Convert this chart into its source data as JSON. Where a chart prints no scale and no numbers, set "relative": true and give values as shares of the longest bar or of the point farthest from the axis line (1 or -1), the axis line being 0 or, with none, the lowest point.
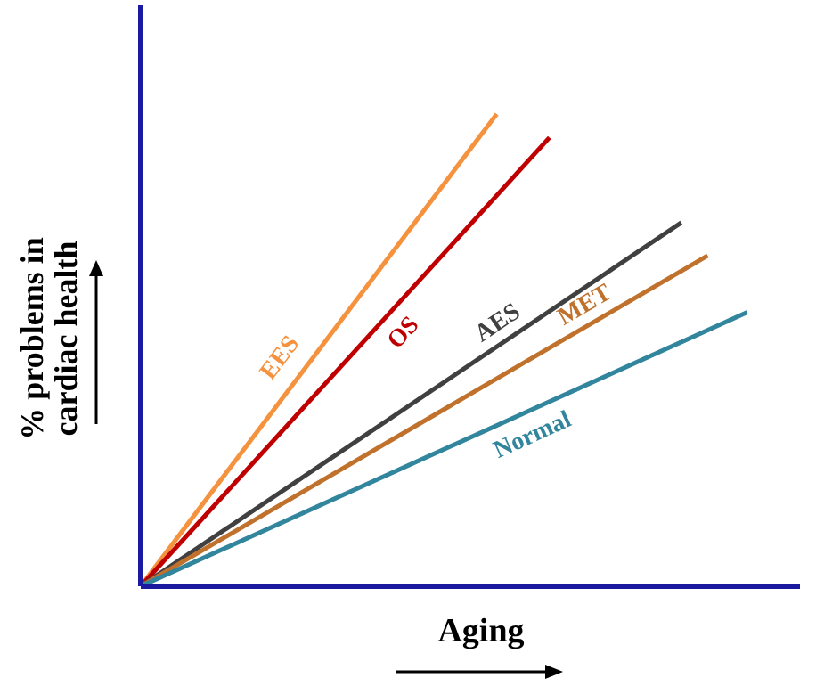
{
  "chart_data": {
    "type": "line",
    "relative": true,
    "xlabel": "Aging",
    "ylabel": "% problems in\ncardiac health",
    "grid": false,
    "legend": false,
    "marker": "none",
    "line_style": "solid",
    "categories": [
      null,
      null,
      null,
      null,
      null,
      null,
      null,
      null,
      null,
      null,
      null,
      null,
      null,
      null,
      null,
      null,
      null,
      null,
      null,
      null,
      null,
      null,
      null,
      null,
      null,
      null,
      null,
      null,
      null,
      null,
      null,
      null,
      null,
      null,
      null,
      null,
      null,
      null,
      null,
      null,
      null,
      null,
      null,
      null,
      null,
      null,
      null,
      null,
      null,
      null,
      null
    ],
    "series": [
      {
        "name": "EES",
        "color": "#f5923e",
        "values": [
          0,
          null,
          null,
          null,
          null,
          null,
          null,
          null,
          null,
          null,
          null,
          null,
          null,
          null,
          null,
          null,
          null,
          null,
          null,
          null,
          null,
          null,
          null,
          null,
          null,
          null,
          null,
          1,
          null,
          null,
          null,
          null,
          null,
          null,
          null,
          null,
          null,
          null,
          null,
          null,
          null,
          null,
          null,
          null,
          null,
          null,
          null,
          null,
          null,
          null,
          null
        ]
      },
      {
        "name": "OS",
        "color": "#c00000",
        "values": [
          0,
          null,
          null,
          null,
          null,
          null,
          null,
          null,
          null,
          null,
          null,
          null,
          null,
          null,
          null,
          null,
          null,
          null,
          null,
          null,
          null,
          null,
          null,
          null,
          null,
          null,
          null,
          null,
          null,
          null,
          null,
          0.95,
          null,
          null,
          null,
          null,
          null,
          null,
          null,
          null,
          null,
          null,
          null,
          null,
          null,
          null,
          null,
          null,
          null,
          null,
          null
        ]
      },
      {
        "name": "AES",
        "color": "#404040",
        "values": [
          0,
          null,
          null,
          null,
          null,
          null,
          null,
          null,
          null,
          null,
          null,
          null,
          null,
          null,
          null,
          null,
          null,
          null,
          null,
          null,
          null,
          null,
          null,
          null,
          null,
          null,
          null,
          null,
          null,
          null,
          null,
          null,
          null,
          null,
          null,
          null,
          null,
          null,
          null,
          null,
          null,
          0.77,
          null,
          null,
          null,
          null,
          null,
          null,
          null,
          null,
          null
        ]
      },
      {
        "name": "MET",
        "color": "#c0712c",
        "values": [
          0,
          null,
          null,
          null,
          null,
          null,
          null,
          null,
          null,
          null,
          null,
          null,
          null,
          null,
          null,
          null,
          null,
          null,
          null,
          null,
          null,
          null,
          null,
          null,
          null,
          null,
          null,
          null,
          null,
          null,
          null,
          null,
          null,
          null,
          null,
          null,
          null,
          null,
          null,
          null,
          null,
          null,
          null,
          0.7,
          null,
          null,
          null,
          null,
          null,
          null,
          null
        ]
      },
      {
        "name": "Normal",
        "color": "#31859c",
        "values": [
          0,
          null,
          null,
          null,
          null,
          null,
          null,
          null,
          null,
          null,
          null,
          null,
          null,
          null,
          null,
          null,
          null,
          null,
          null,
          null,
          null,
          null,
          null,
          null,
          null,
          null,
          null,
          null,
          null,
          null,
          null,
          null,
          null,
          null,
          null,
          null,
          null,
          null,
          null,
          null,
          null,
          null,
          null,
          null,
          null,
          null,
          0.58,
          null,
          null,
          null,
          null
        ]
      }
    ]
  }
}
